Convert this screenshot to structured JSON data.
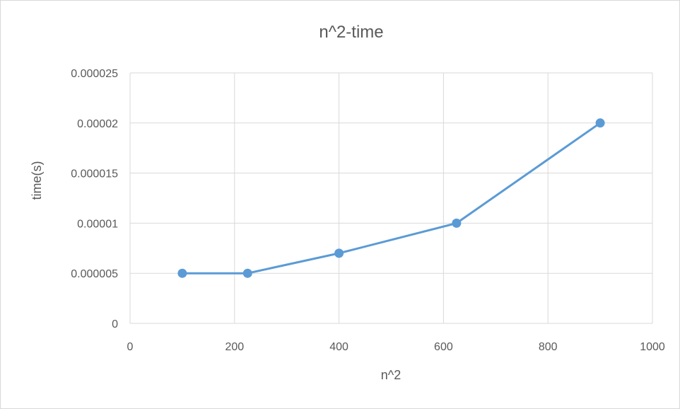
{
  "chart_data": {
    "type": "scatter",
    "title": "n^2-time",
    "xlabel": "n^2",
    "ylabel": "time(s)",
    "xlim": [
      0,
      1000
    ],
    "ylim": [
      0,
      2.5e-05
    ],
    "x_ticks": [
      "0",
      "200",
      "400",
      "600",
      "800",
      "1000"
    ],
    "y_ticks": [
      "0",
      "0.000005",
      "0.00001",
      "0.000015",
      "0.00002",
      "0.000025"
    ],
    "grid": true,
    "legend": "none",
    "color": "#5b9bd5",
    "series": [
      {
        "x": [
          100,
          225,
          400,
          625,
          900
        ],
        "y": [
          5e-06,
          5e-06,
          7e-06,
          1e-05,
          2e-05
        ]
      }
    ]
  }
}
